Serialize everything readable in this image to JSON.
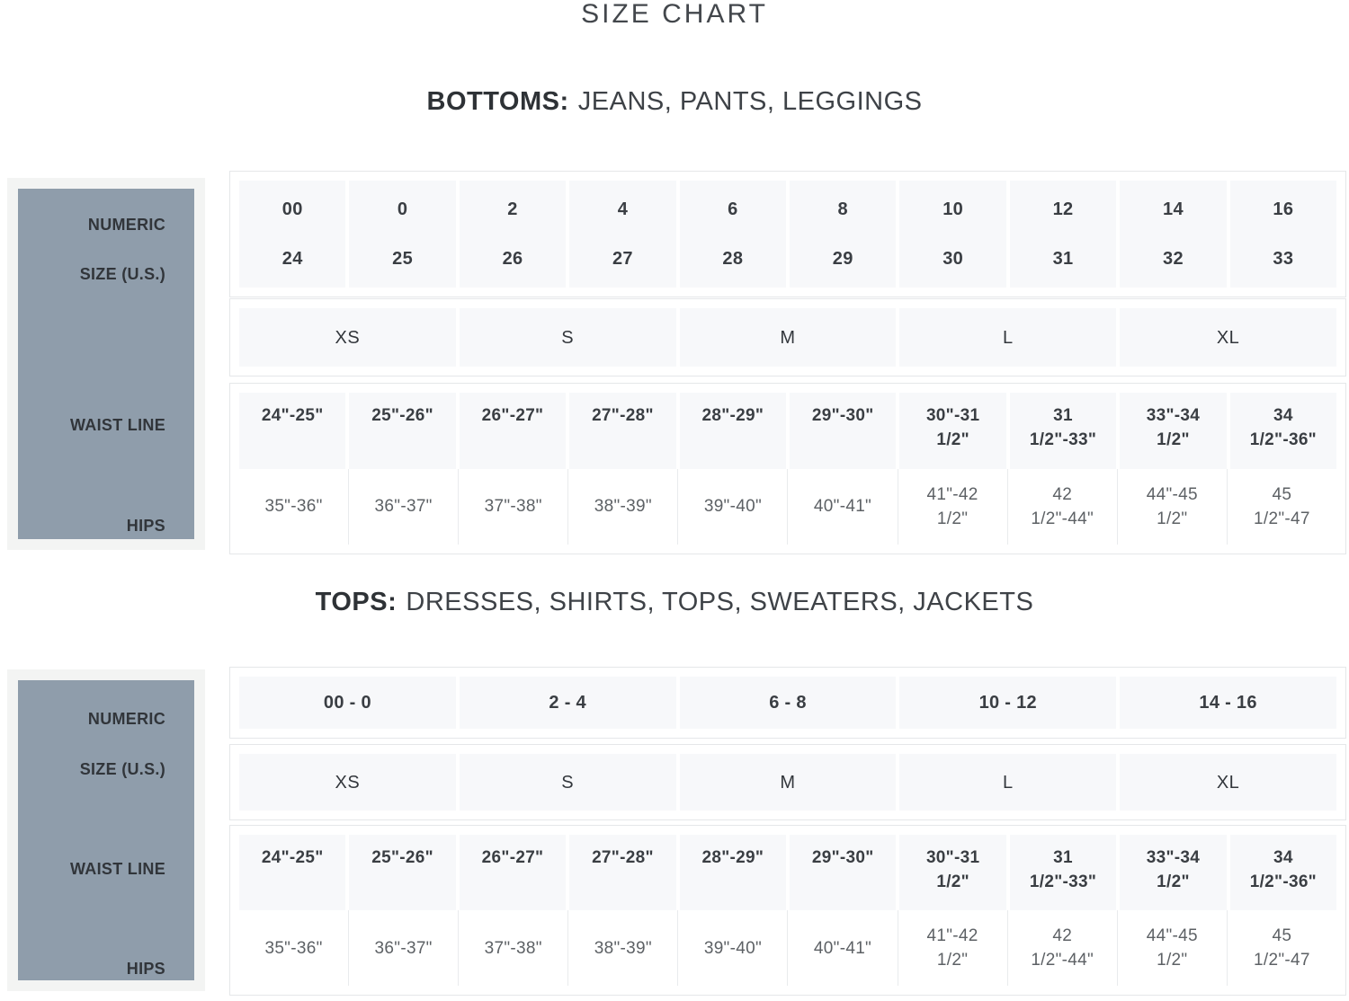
{
  "title": "SIZE CHART",
  "colors": {
    "sidebar_bg": "#8f9dab",
    "sidebar_frame_bg": "#f3f4f3",
    "cell_bg": "#f7f8fa",
    "table_border": "#e5e7e9",
    "text_dark": "#3a3e43",
    "text_muted": "#5d6165"
  },
  "bottoms": {
    "heading_bold": "BOTTOMS:",
    "heading_rest": "JEANS, PANTS, LEGGINGS",
    "sidebar": {
      "numeric_line1": "NUMERIC",
      "numeric_line2": "SIZE (U.S.)",
      "waist": "WAIST LINE",
      "hips": "HIPS"
    },
    "numeric_sizes": [
      "00",
      "0",
      "2",
      "4",
      "6",
      "8",
      "10",
      "12",
      "14",
      "16"
    ],
    "jean_sizes": [
      "24",
      "25",
      "26",
      "27",
      "28",
      "29",
      "30",
      "31",
      "32",
      "33"
    ],
    "letter_sizes": [
      "XS",
      "S",
      "M",
      "L",
      "XL"
    ],
    "waist_line": [
      "24\"-25\"",
      "25\"-26\"",
      "26\"-27\"",
      "27\"-28\"",
      "28\"-29\"",
      "29\"-30\"",
      "30\"-31\n1/2\"",
      "31\n1/2\"-33\"",
      "33\"-34\n1/2\"",
      "34\n1/2\"-36\""
    ],
    "hips": [
      "35\"-36\"",
      "36\"-37\"",
      "37\"-38\"",
      "38\"-39\"",
      "39\"-40\"",
      "40\"-41\"",
      "41\"-42\n1/2\"",
      "42\n1/2\"-44\"",
      "44\"-45\n1/2\"",
      "45\n1/2\"-47"
    ]
  },
  "tops": {
    "heading_bold": "TOPS:",
    "heading_rest": "DRESSES, SHIRTS, TOPS, SWEATERS, JACKETS",
    "sidebar": {
      "numeric_line1": "NUMERIC",
      "numeric_line2": "SIZE (U.S.)",
      "waist": "WAIST LINE",
      "hips": "HIPS"
    },
    "numeric_sizes": [
      "00 - 0",
      "2 - 4",
      "6 - 8",
      "10 - 12",
      "14 - 16"
    ],
    "letter_sizes": [
      "XS",
      "S",
      "M",
      "L",
      "XL"
    ],
    "waist_line": [
      "24\"-25\"",
      "25\"-26\"",
      "26\"-27\"",
      "27\"-28\"",
      "28\"-29\"",
      "29\"-30\"",
      "30\"-31\n1/2\"",
      "31\n1/2\"-33\"",
      "33\"-34\n1/2\"",
      "34\n1/2\"-36\""
    ],
    "hips": [
      "35\"-36\"",
      "36\"-37\"",
      "37\"-38\"",
      "38\"-39\"",
      "39\"-40\"",
      "40\"-41\"",
      "41\"-42\n1/2\"",
      "42\n1/2\"-44\"",
      "44\"-45\n1/2\"",
      "45\n1/2\"-47"
    ]
  }
}
